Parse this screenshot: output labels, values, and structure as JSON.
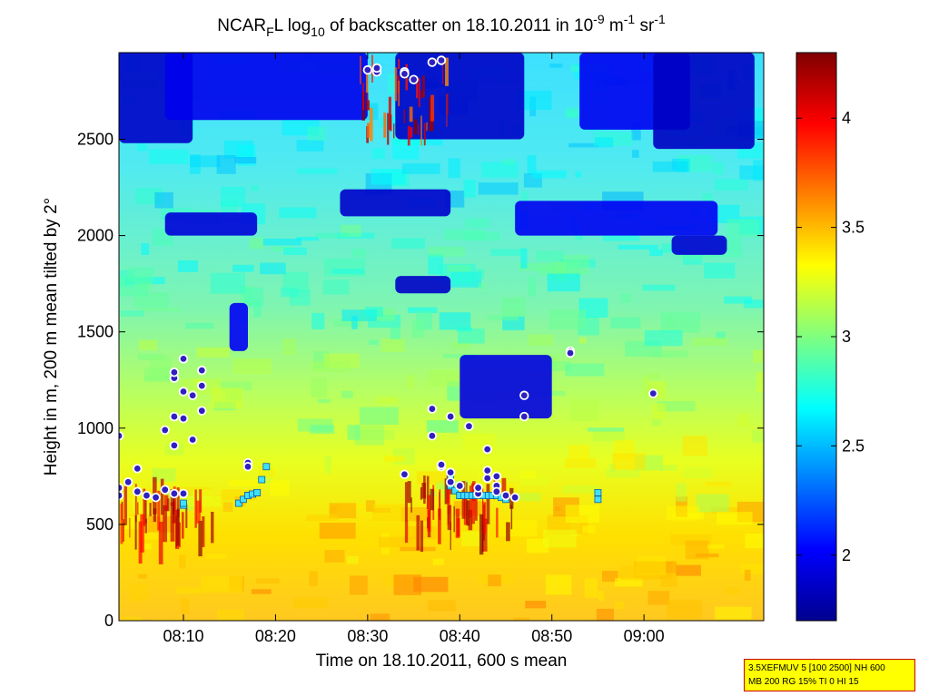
{
  "chart_data": {
    "type": "heatmap",
    "title_parts": {
      "a": "NCAR",
      "a_sub": "F",
      "b": "L log",
      "b_sub": "10",
      "c": " of backscatter on 18.10.2011 in 10",
      "c_sup": "-9",
      "d": " m",
      "d_sup": "-1",
      "e": " sr",
      "e_sup": "-1"
    },
    "xlabel": "Time on 18.10.2011, 600 s mean",
    "ylabel": "Height in m, 200 m mean tilted by 2°",
    "xlim": [
      "08:03",
      "09:13"
    ],
    "ylim": [
      0,
      2950
    ],
    "x_ticks": [
      "08:10",
      "08:20",
      "08:30",
      "08:40",
      "08:50",
      "09:00"
    ],
    "y_ticks": [
      0,
      500,
      1000,
      1500,
      2000,
      2500
    ],
    "colorbar": {
      "range": [
        1.7,
        4.3
      ],
      "ticks": [
        "2",
        "2.5",
        "3",
        "3.5",
        "4"
      ],
      "colormap": "jet"
    },
    "boundary_layer_series": [
      {
        "t": "08:03",
        "h": 600
      },
      {
        "t": "08:10",
        "h": 600
      },
      {
        "t": "08:10",
        "h": 610
      },
      {
        "t": "08:16",
        "h": 610
      },
      {
        "t": "08:17",
        "h": 650
      },
      {
        "t": "08:18",
        "h": 665
      },
      {
        "t": "08:19",
        "h": 800
      },
      {
        "t": "08:26",
        "h": 800
      },
      {
        "t": "08:34",
        "h": 755
      },
      {
        "t": "08:39",
        "h": 755
      },
      {
        "t": "08:39",
        "h": 700
      },
      {
        "t": "08:40",
        "h": 650
      },
      {
        "t": "08:44",
        "h": 650
      },
      {
        "t": "08:45",
        "h": 630
      },
      {
        "t": "08:55",
        "h": 630
      },
      {
        "t": "08:55",
        "h": 665
      }
    ],
    "cloud_points": [
      {
        "t": "08:03",
        "h": 960
      },
      {
        "t": "08:03",
        "h": 690
      },
      {
        "t": "08:03",
        "h": 650
      },
      {
        "t": "08:04",
        "h": 720
      },
      {
        "t": "08:05",
        "h": 790
      },
      {
        "t": "08:05",
        "h": 670
      },
      {
        "t": "08:06",
        "h": 650
      },
      {
        "t": "08:07",
        "h": 640
      },
      {
        "t": "08:08",
        "h": 990
      },
      {
        "t": "08:08",
        "h": 680
      },
      {
        "t": "08:09",
        "h": 660
      },
      {
        "t": "08:09",
        "h": 910
      },
      {
        "t": "08:09",
        "h": 1260
      },
      {
        "t": "08:09",
        "h": 1290
      },
      {
        "t": "08:09",
        "h": 1060
      },
      {
        "t": "08:10",
        "h": 1050
      },
      {
        "t": "08:10",
        "h": 1360
      },
      {
        "t": "08:10",
        "h": 1190
      },
      {
        "t": "08:10",
        "h": 660
      },
      {
        "t": "08:11",
        "h": 940
      },
      {
        "t": "08:11",
        "h": 1170
      },
      {
        "t": "08:12",
        "h": 1090
      },
      {
        "t": "08:12",
        "h": 1220
      },
      {
        "t": "08:12",
        "h": 1300
      },
      {
        "t": "08:17",
        "h": 820
      },
      {
        "t": "08:17",
        "h": 800
      },
      {
        "t": "08:30",
        "h": 2860
      },
      {
        "t": "08:31",
        "h": 2850
      },
      {
        "t": "08:31",
        "h": 2870
      },
      {
        "t": "08:34",
        "h": 2850
      },
      {
        "t": "08:34",
        "h": 2840
      },
      {
        "t": "08:35",
        "h": 2810
      },
      {
        "t": "08:37",
        "h": 2900
      },
      {
        "t": "08:38",
        "h": 2910
      },
      {
        "t": "08:34",
        "h": 760
      },
      {
        "t": "08:37",
        "h": 1100
      },
      {
        "t": "08:37",
        "h": 960
      },
      {
        "t": "08:38",
        "h": 800
      },
      {
        "t": "08:38",
        "h": 810
      },
      {
        "t": "08:39",
        "h": 1060
      },
      {
        "t": "08:39",
        "h": 770
      },
      {
        "t": "08:39",
        "h": 720
      },
      {
        "t": "08:40",
        "h": 700
      },
      {
        "t": "08:41",
        "h": 1010
      },
      {
        "t": "08:42",
        "h": 660
      },
      {
        "t": "08:42",
        "h": 690
      },
      {
        "t": "08:43",
        "h": 740
      },
      {
        "t": "08:43",
        "h": 890
      },
      {
        "t": "08:43",
        "h": 780
      },
      {
        "t": "08:44",
        "h": 750
      },
      {
        "t": "08:44",
        "h": 700
      },
      {
        "t": "08:44",
        "h": 670
      },
      {
        "t": "08:45",
        "h": 650
      },
      {
        "t": "08:46",
        "h": 640
      },
      {
        "t": "08:47",
        "h": 1060
      },
      {
        "t": "08:47",
        "h": 1170
      },
      {
        "t": "08:52",
        "h": 1400
      },
      {
        "t": "08:52",
        "h": 1390
      },
      {
        "t": "09:01",
        "h": 1180
      }
    ]
  },
  "info_box": {
    "line1": "3.5XEFMUV 5 [100 2500] NH 600",
    "line2": "MB 200 RG 15% TI 0 HI 15"
  }
}
